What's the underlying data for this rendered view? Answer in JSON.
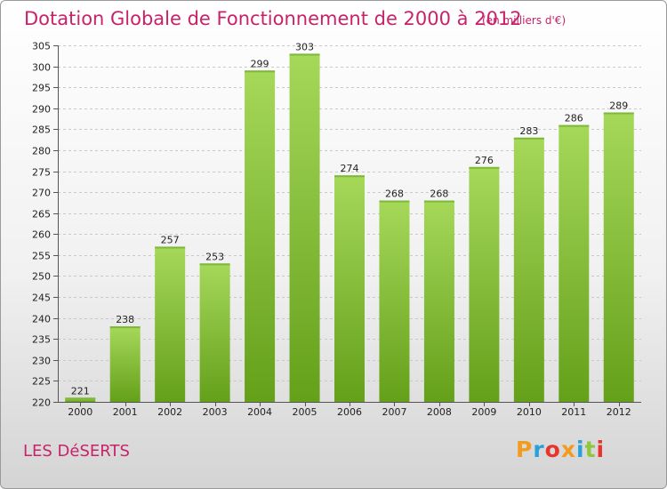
{
  "header": {
    "title": "Dotation Globale de Fonctionnement de 2000 à 2012",
    "unit": "(en milliers d'€)"
  },
  "footer": {
    "place": "LES DéSERTS",
    "logo_letters": [
      "P",
      "r",
      "o",
      "x",
      "i",
      "t",
      "i"
    ],
    "logo_colors": [
      "#f29c1f",
      "#29a0d8",
      "#e7352d",
      "#f29c1f",
      "#29a0d8",
      "#8dc63f",
      "#e7352d"
    ]
  },
  "colors": {
    "title": "#c8226a",
    "bar_light": "#a6d85a",
    "bar_dark": "#64a01a"
  },
  "chart_data": {
    "type": "bar",
    "title": "Dotation Globale de Fonctionnement de 2000 à 2012",
    "subtitle": "(en milliers d'€)",
    "categories": [
      "2000",
      "2001",
      "2002",
      "2003",
      "2004",
      "2005",
      "2006",
      "2007",
      "2008",
      "2009",
      "2010",
      "2011",
      "2012"
    ],
    "values": [
      221,
      238,
      257,
      253,
      299,
      303,
      274,
      268,
      268,
      276,
      283,
      286,
      289
    ],
    "ylim": [
      220,
      305
    ],
    "yticks": [
      220,
      225,
      230,
      235,
      240,
      245,
      250,
      255,
      260,
      265,
      270,
      275,
      280,
      285,
      290,
      295,
      300,
      305
    ],
    "grid": true,
    "legend": "none"
  }
}
